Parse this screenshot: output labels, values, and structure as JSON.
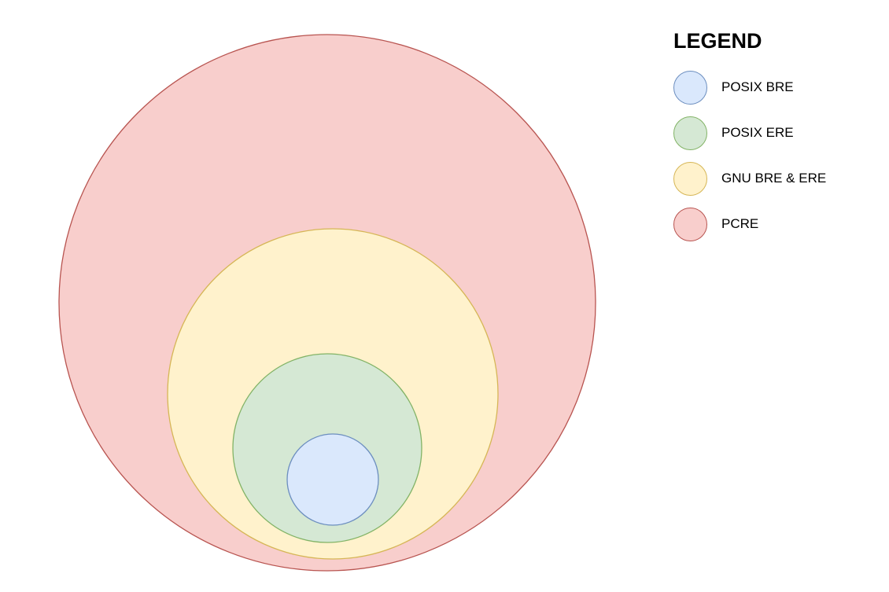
{
  "legend": {
    "title": "LEGEND",
    "items": [
      {
        "label": "POSIX BRE",
        "fill": "#dae8fc",
        "stroke": "#6c8ebf"
      },
      {
        "label": "POSIX ERE",
        "fill": "#d5e8d4",
        "stroke": "#82b366"
      },
      {
        "label": "GNU BRE & ERE",
        "fill": "#fff2cc",
        "stroke": "#d6b656"
      },
      {
        "label": "PCRE",
        "fill": "#f8cecc",
        "stroke": "#b85450"
      }
    ]
  },
  "diagram": {
    "nesting_order_outer_to_inner": [
      "PCRE",
      "GNU BRE & ERE",
      "POSIX ERE",
      "POSIX BRE"
    ]
  }
}
